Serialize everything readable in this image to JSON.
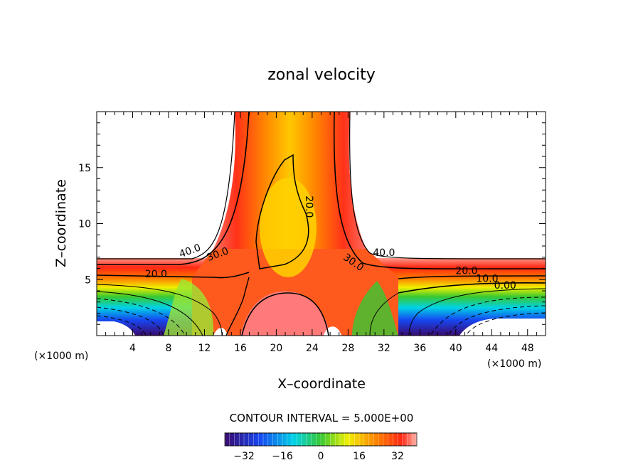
{
  "chart_data": {
    "type": "contour",
    "title": "zonal velocity",
    "xlabel": "X–coordinate",
    "ylabel": "Z–coordinate",
    "x_unit_left": "(×1000 m)",
    "x_unit_right": "(×1000 m)",
    "xlim": [
      0,
      50
    ],
    "ylim": [
      0,
      20
    ],
    "x_ticks": [
      4,
      8,
      12,
      16,
      20,
      24,
      28,
      32,
      36,
      40,
      44,
      48
    ],
    "y_ticks": [
      5,
      10,
      15
    ],
    "contour_interval_label": "CONTOUR INTERVAL = 5.000E+00",
    "contour_labels": [
      {
        "text": "40.0",
        "x": 10.5,
        "z": 7.3
      },
      {
        "text": "30.0",
        "x": 13.6,
        "z": 7.0
      },
      {
        "text": "20.0",
        "x": 6.6,
        "z": 5.2
      },
      {
        "text": "20.0",
        "x": 23.3,
        "z": 11.5
      },
      {
        "text": "30.0",
        "x": 28.4,
        "z": 6.3
      },
      {
        "text": "40.0",
        "x": 32.0,
        "z": 7.1
      },
      {
        "text": "20.0",
        "x": 41.2,
        "z": 5.5
      },
      {
        "text": "10.0",
        "x": 43.5,
        "z": 4.8
      },
      {
        "text": "0.00",
        "x": 45.5,
        "z": 4.2
      }
    ],
    "colorbar": {
      "ticks": [
        "−32",
        "−16",
        "0",
        "16",
        "32"
      ],
      "tick_values": [
        -32,
        -16,
        0,
        16,
        32
      ],
      "range": [
        -40,
        40
      ]
    },
    "colors": {
      "min": "#3a0a6e",
      "blue": "#1646f0",
      "cyan": "#00d2e6",
      "green": "#37c832",
      "yellow": "#f0f000",
      "orange": "#ff7a00",
      "red": "#ff2814",
      "max": "#ffb4aa"
    }
  }
}
